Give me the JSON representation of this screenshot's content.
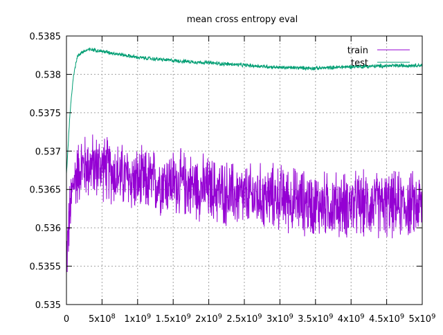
{
  "chart_data": {
    "type": "line",
    "title": "mean cross entropy eval",
    "xlabel": "",
    "ylabel": "",
    "xlim": [
      0,
      5000000000
    ],
    "ylim": [
      0.535,
      0.5385
    ],
    "grid": true,
    "legend_position": "top-right",
    "x_ticks": [
      {
        "value": 0,
        "label": "0"
      },
      {
        "value": 500000000,
        "label": "5x10^8"
      },
      {
        "value": 1000000000,
        "label": "1x10^9"
      },
      {
        "value": 1500000000,
        "label": "1.5x10^9"
      },
      {
        "value": 2000000000,
        "label": "2x10^9"
      },
      {
        "value": 2500000000,
        "label": "2.5x10^9"
      },
      {
        "value": 3000000000,
        "label": "3x10^9"
      },
      {
        "value": 3500000000,
        "label": "3.5x10^9"
      },
      {
        "value": 4000000000,
        "label": "4x10^9"
      },
      {
        "value": 4500000000,
        "label": "4.5x10^9"
      },
      {
        "value": 5000000000,
        "label": "5x10^9"
      }
    ],
    "y_ticks": [
      {
        "value": 0.535,
        "label": "0.535"
      },
      {
        "value": 0.5355,
        "label": "0.5355"
      },
      {
        "value": 0.536,
        "label": "0.536"
      },
      {
        "value": 0.5365,
        "label": "0.5365"
      },
      {
        "value": 0.537,
        "label": "0.537"
      },
      {
        "value": 0.5375,
        "label": "0.5375"
      },
      {
        "value": 0.538,
        "label": "0.538"
      },
      {
        "value": 0.5385,
        "label": "0.5385"
      }
    ],
    "series": [
      {
        "name": "train",
        "color": "#9400d3",
        "noise_amplitude": 0.0005,
        "x": [
          0,
          50000000,
          100000000,
          200000000,
          300000000,
          500000000,
          700000000,
          1000000000,
          1500000000,
          2000000000,
          2500000000,
          3000000000,
          3500000000,
          4000000000,
          4500000000,
          5000000000
        ],
        "values": [
          0.5356,
          0.5362,
          0.5366,
          0.5368,
          0.5368,
          0.5368,
          0.5367,
          0.5366,
          0.5366,
          0.5365,
          0.5364,
          0.5364,
          0.5363,
          0.5363,
          0.5363,
          0.5363
        ]
      },
      {
        "name": "test",
        "color": "#009e73",
        "noise_amplitude": 3e-05,
        "x": [
          0,
          50000000,
          100000000,
          150000000,
          200000000,
          300000000,
          400000000,
          500000000,
          700000000,
          1000000000,
          1500000000,
          2000000000,
          2500000000,
          3000000000,
          3500000000,
          4000000000,
          4500000000,
          5000000000
        ],
        "values": [
          0.5367,
          0.5375,
          0.538,
          0.53822,
          0.53828,
          0.53832,
          0.53832,
          0.5383,
          0.53827,
          0.53822,
          0.53818,
          0.53815,
          0.53812,
          0.53809,
          0.53808,
          0.5381,
          0.53811,
          0.53812
        ]
      }
    ]
  }
}
